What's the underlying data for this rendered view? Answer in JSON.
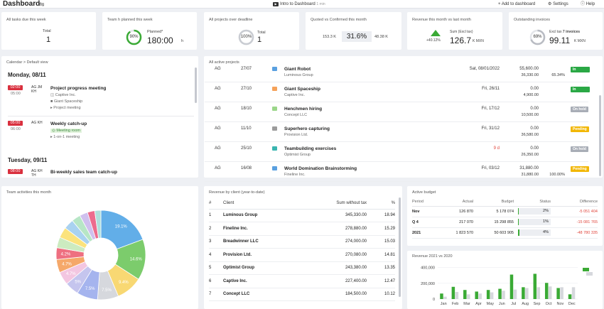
{
  "topbar": {
    "title": "Dashboard",
    "tune_icon": "sliders-icon",
    "intro_label": "Intro to Dashboard",
    "intro_duration": "1 min",
    "add_label": "+ Add to dashboard",
    "settings_label": "Settings",
    "help_label": "Help"
  },
  "kpis": {
    "tasks": {
      "label": "All tasks due this week",
      "sub": "Total",
      "value": "1"
    },
    "planned": {
      "label": "Team h planned this week",
      "ring": "90%",
      "ring_fraction": 0.9,
      "sub": "Planned*",
      "value": "180:00",
      "unit": "h"
    },
    "overdue": {
      "label": "All projects over deadline",
      "ring": "100%",
      "ring_fraction": 1.0,
      "sub": "Total",
      "value": "1"
    },
    "quoted": {
      "label": "Quoted vs Confirmed this month",
      "left": "153.3 K",
      "value": "31.6%",
      "right": "48.38 K"
    },
    "revenue": {
      "label": "Revenue this month vs last month",
      "sub": "Sum (Excl tax)",
      "delta": "+40.12%",
      "value": "126.7",
      "unit": "K MXN"
    },
    "invoices": {
      "label": "Outstanding invoices",
      "ring": "69%",
      "ring_fraction": 0.69,
      "sub_prefix": "Excl tax",
      "sub_count": "7 invoices",
      "value": "99.11",
      "unit": "K MXN"
    }
  },
  "calendar": {
    "title": "Calendar > Default view",
    "day1": "Monday, 08/11",
    "day2": "Tuesday, 09/11",
    "events": [
      {
        "start": "02:00",
        "end": "05:00",
        "who1": "AG JM",
        "who2": "KH",
        "name": "Project progress meeting",
        "l1": "Captive Inc.",
        "l2": "Giant Spaceship",
        "l3": "Project meeting"
      },
      {
        "start": "05:00",
        "end": "06:00",
        "who1": "AG KH",
        "name": "Weekly catch-up",
        "l1": "Meeting room",
        "l2": "1-on-1 meeting"
      },
      {
        "start": "08:00",
        "who1": "AG KH",
        "who2": "TH",
        "name": "Bi-weekly sales team catch-up"
      }
    ]
  },
  "projects": {
    "title": "All active projects",
    "rows": [
      {
        "owner": "AG",
        "date": "27/07",
        "color": "#5aa0e0",
        "name": "Giant Robot",
        "client": "Luminous Group",
        "deadline": "Sat, 08/01/2022",
        "v1": "55,600.00",
        "v2": "36,330.00",
        "pct": "65.34%",
        "status": "In progress",
        "status_color": "#2aa845"
      },
      {
        "owner": "AG",
        "date": "27/10",
        "color": "#f5a25a",
        "name": "Giant Spaceship",
        "client": "Captive Inc.",
        "deadline": "Fri, 26/11",
        "v1": "0.00",
        "v2": "4,900.00",
        "pct": "",
        "status": "In progress",
        "status_color": "#2aa845"
      },
      {
        "owner": "AG",
        "date": "18/10",
        "color": "#9bd68a",
        "name": "Henchmen hiring",
        "client": "Concept LLC",
        "deadline": "Fri, 17/12",
        "v1": "0.00",
        "v2": "10,500.00",
        "pct": "",
        "status": "On hold",
        "status_color": "#a8adb6"
      },
      {
        "owner": "AG",
        "date": "11/10",
        "color": "#9c9c9c",
        "name": "Superhero capturing",
        "client": "Provision Ltd.",
        "deadline": "Fri, 31/12",
        "v1": "0.00",
        "v2": "36,580.00",
        "pct": "",
        "status": "Pending",
        "status_color": "#f2b705"
      },
      {
        "owner": "AG",
        "date": "25/10",
        "color": "#3ab5b0",
        "name": "Teambuilding exercises",
        "client": "Optimist Group",
        "deadline": "9 d",
        "deadline_red": true,
        "v1": "0.00",
        "v2": "26,350.00",
        "pct": "",
        "status": "On hold",
        "status_color": "#a8adb6"
      },
      {
        "owner": "AG",
        "date": "16/08",
        "color": "#5aa0e0",
        "name": "World Domination Brainstorming",
        "client": "Fineline Inc.",
        "deadline": "Fri, 03/12",
        "v1": "31,880.00",
        "v2": "31,880.00",
        "pct": "100.00%",
        "status": "Pending",
        "status_color": "#f2b705"
      }
    ]
  },
  "team": {
    "title": "Team activities this month",
    "slices": [
      {
        "label": "19.1%",
        "value": 19.1,
        "color": "#62aee8"
      },
      {
        "label": "14.6%",
        "value": 14.6,
        "color": "#7ccc6c"
      },
      {
        "label": "9.4%",
        "value": 9.4,
        "color": "#f8d873"
      },
      {
        "label": "7.5%",
        "value": 7.5,
        "color": "#d6d8dd"
      },
      {
        "label": "7.5%",
        "value": 7.5,
        "color": "#a5b4ee"
      },
      {
        "label": "5%",
        "value": 5.0,
        "color": "#c5c5ee"
      },
      {
        "label": "4.7%",
        "value": 4.7,
        "color": "#f3c6e1"
      },
      {
        "label": "4.7%",
        "value": 4.7,
        "color": "#f5a86a"
      },
      {
        "label": "4.2%",
        "value": 4.2,
        "color": "#ee6f80"
      },
      {
        "label": "",
        "value": 3.8,
        "color": "#ccebc0"
      },
      {
        "label": "",
        "value": 3.8,
        "color": "#fbe37d"
      },
      {
        "label": "",
        "value": 3.6,
        "color": "#a9d2f0"
      },
      {
        "label": "",
        "value": 3.2,
        "color": "#b7e6c6"
      },
      {
        "label": "",
        "value": 2.9,
        "color": "#cfc0ee"
      },
      {
        "label": "",
        "value": 2.6,
        "color": "#ec6c8e"
      },
      {
        "label": "",
        "value": 2.2,
        "color": "#aee0dc"
      }
    ]
  },
  "revenue_by_client": {
    "title": "Revenue by client (year-to-date)",
    "headers": [
      "#",
      "Client",
      "Sum without tax",
      "%"
    ],
    "rows": [
      [
        "1",
        "Luminous Group",
        "345,330.00",
        "18.94"
      ],
      [
        "2",
        "Fineline Inc.",
        "278,880.00",
        "15.29"
      ],
      [
        "3",
        "Breadwinner LLC",
        "274,000.00",
        "15.03"
      ],
      [
        "4",
        "Provision Ltd.",
        "270,080.00",
        "14.81"
      ],
      [
        "5",
        "Optimist Group",
        "243,380.00",
        "13.35"
      ],
      [
        "6",
        "Captive Inc.",
        "227,400.00",
        "12.47"
      ],
      [
        "7",
        "Concept LLC",
        "184,500.00",
        "10.12"
      ]
    ]
  },
  "budget": {
    "title": "Active budget",
    "headers": [
      "Period",
      "Actual",
      "Budget",
      "Status",
      "Difference"
    ],
    "rows": [
      {
        "period": "Nov",
        "actual": "126 870",
        "budget": "5 178 074",
        "status": "2%",
        "status_fraction": 0.02,
        "diff": "-5 051 404"
      },
      {
        "period": "Q 4",
        "actual": "217 070",
        "budget": "15 298 855",
        "status": "1%",
        "status_fraction": 0.01,
        "diff": "-15 081 765"
      },
      {
        "period": "2021",
        "actual": "1 823 570",
        "budget": "50 603 905",
        "status": "4%",
        "status_fraction": 0.04,
        "diff": "-48 780 335"
      }
    ]
  },
  "chart_data": {
    "type": "bar",
    "title": "Revenue 2021 vs 2020",
    "categories": [
      "Jan",
      "Feb",
      "Mar",
      "Apr",
      "May",
      "Jun",
      "Jul",
      "Aug",
      "Sep",
      "Oct",
      "Nov",
      "Dec"
    ],
    "yticks": [
      "0",
      "200,000",
      "400,000"
    ],
    "ylim": [
      0,
      450000
    ],
    "series": [
      {
        "values": [
          70000,
          155000,
          115000,
          95000,
          115000,
          130000,
          310000,
          150000,
          320000,
          205000,
          140000,
          60000
        ],
        "color": "#3aaa35"
      },
      {
        "values": [
          30000,
          90000,
          60000,
          70000,
          85000,
          105000,
          120000,
          140000,
          150000,
          160000,
          150000,
          150000
        ],
        "color": "#d6d8dd"
      }
    ]
  }
}
